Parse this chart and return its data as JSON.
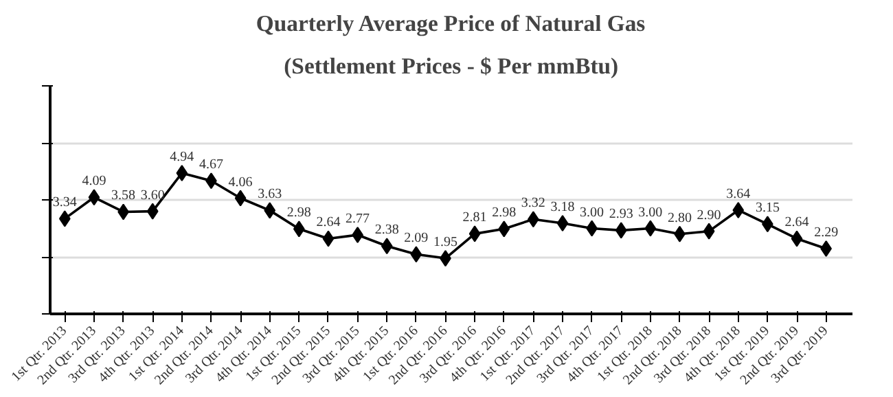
{
  "chart_data": {
    "type": "line",
    "title": "Quarterly Average Price of Natural Gas",
    "subtitle": "(Settlement Prices - $ Per mmBtu)",
    "categories": [
      "1st Qtr. 2013",
      "2nd Qtr. 2013",
      "3rd Qtr. 2013",
      "4th Qtr. 2013",
      "1st Qtr. 2014",
      "2nd Qtr. 2014",
      "3rd Qtr. 2014",
      "4th Qtr. 2014",
      "1st Qtr. 2015",
      "2nd Qtr. 2015",
      "3rd Qtr. 2015",
      "4th Qtr. 2015",
      "1st Qtr. 2016",
      "2nd Qtr. 2016",
      "3rd Qtr. 2016",
      "4th Qtr. 2016",
      "1st Qtr. 2017",
      "2nd Qtr. 2017",
      "3rd Qtr. 2017",
      "4th Qtr. 2017",
      "1st Qtr. 2018",
      "2nd Qtr. 2018",
      "3rd Qtr. 2018",
      "4th Qtr. 2018",
      "1st Qtr. 2019",
      "2nd Qtr. 2019",
      "3rd Qtr. 2019"
    ],
    "series": [
      {
        "color": "#000000",
        "values": [
          3.34,
          4.09,
          3.58,
          3.6,
          4.94,
          4.67,
          4.06,
          3.63,
          2.98,
          2.64,
          2.77,
          2.38,
          2.09,
          1.95,
          2.81,
          2.98,
          3.32,
          3.18,
          3.0,
          2.93,
          3.0,
          2.8,
          2.9,
          3.64,
          3.15,
          2.64,
          2.29
        ],
        "value_labels": [
          "3.34",
          "4.09",
          "3.58",
          "3.60",
          "4.94",
          "4.67",
          "4.06",
          "3.63",
          "2.98",
          "2.64",
          "2.77",
          "2.38",
          "2.09",
          "1.95",
          "2.81",
          "2.98",
          "3.32",
          "3.18",
          "3.00",
          "2.93",
          "3.00",
          "2.80",
          "2.90",
          "3.64",
          "3.15",
          "2.64",
          "2.29"
        ]
      }
    ],
    "ylim": [
      0,
      8
    ],
    "yticks": [
      {
        "value": 0,
        "label": null
      },
      {
        "value": 2,
        "label": null
      },
      {
        "value": 4,
        "label": null
      },
      {
        "value": 6,
        "label": null
      },
      {
        "value": 8,
        "label": null
      }
    ],
    "grid": "y",
    "marker": "diamond",
    "line_style": "solid",
    "tick_labels": "x"
  }
}
